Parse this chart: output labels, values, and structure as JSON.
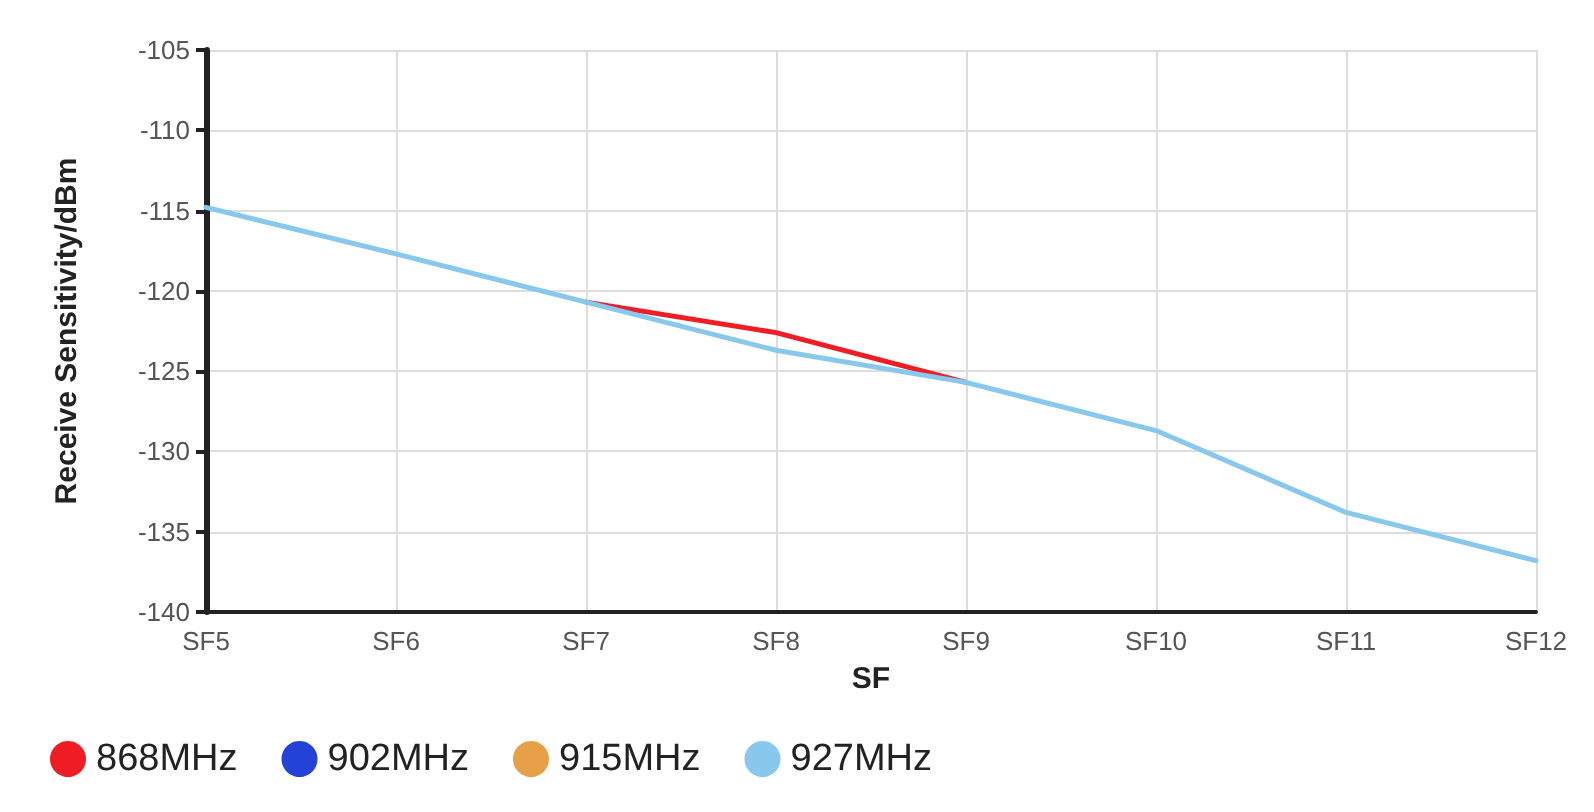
{
  "chart_data": {
    "type": "line",
    "xlabel": "SF",
    "ylabel": "Receive Sensitivity/dBm",
    "categories": [
      "SF5",
      "SF6",
      "SF7",
      "SF8",
      "SF9",
      "SF10",
      "SF11",
      "SF12"
    ],
    "series": [
      {
        "name": "868MHz",
        "color": "#f01c24",
        "values": [
          null,
          null,
          -120.7,
          -122.6,
          -125.7,
          null,
          null,
          null
        ]
      },
      {
        "name": "902MHz",
        "color": "#2343d8",
        "values": [
          null,
          null,
          null,
          null,
          null,
          null,
          null,
          null
        ]
      },
      {
        "name": "915MHz",
        "color": "#e8a048",
        "values": [
          null,
          null,
          null,
          null,
          null,
          null,
          null,
          null
        ]
      },
      {
        "name": "927MHz",
        "color": "#88c8ec",
        "values": [
          -114.8,
          -117.7,
          -120.7,
          -123.7,
          -125.7,
          -128.7,
          -133.8,
          -136.8
        ]
      }
    ],
    "ylim": [
      -140,
      -105
    ],
    "yticks": [
      -140,
      -135,
      -130,
      -125,
      -120,
      -115,
      -110,
      -105
    ],
    "grid": true,
    "legend": "bottom left",
    "marker": "none",
    "line_style": "solid"
  }
}
